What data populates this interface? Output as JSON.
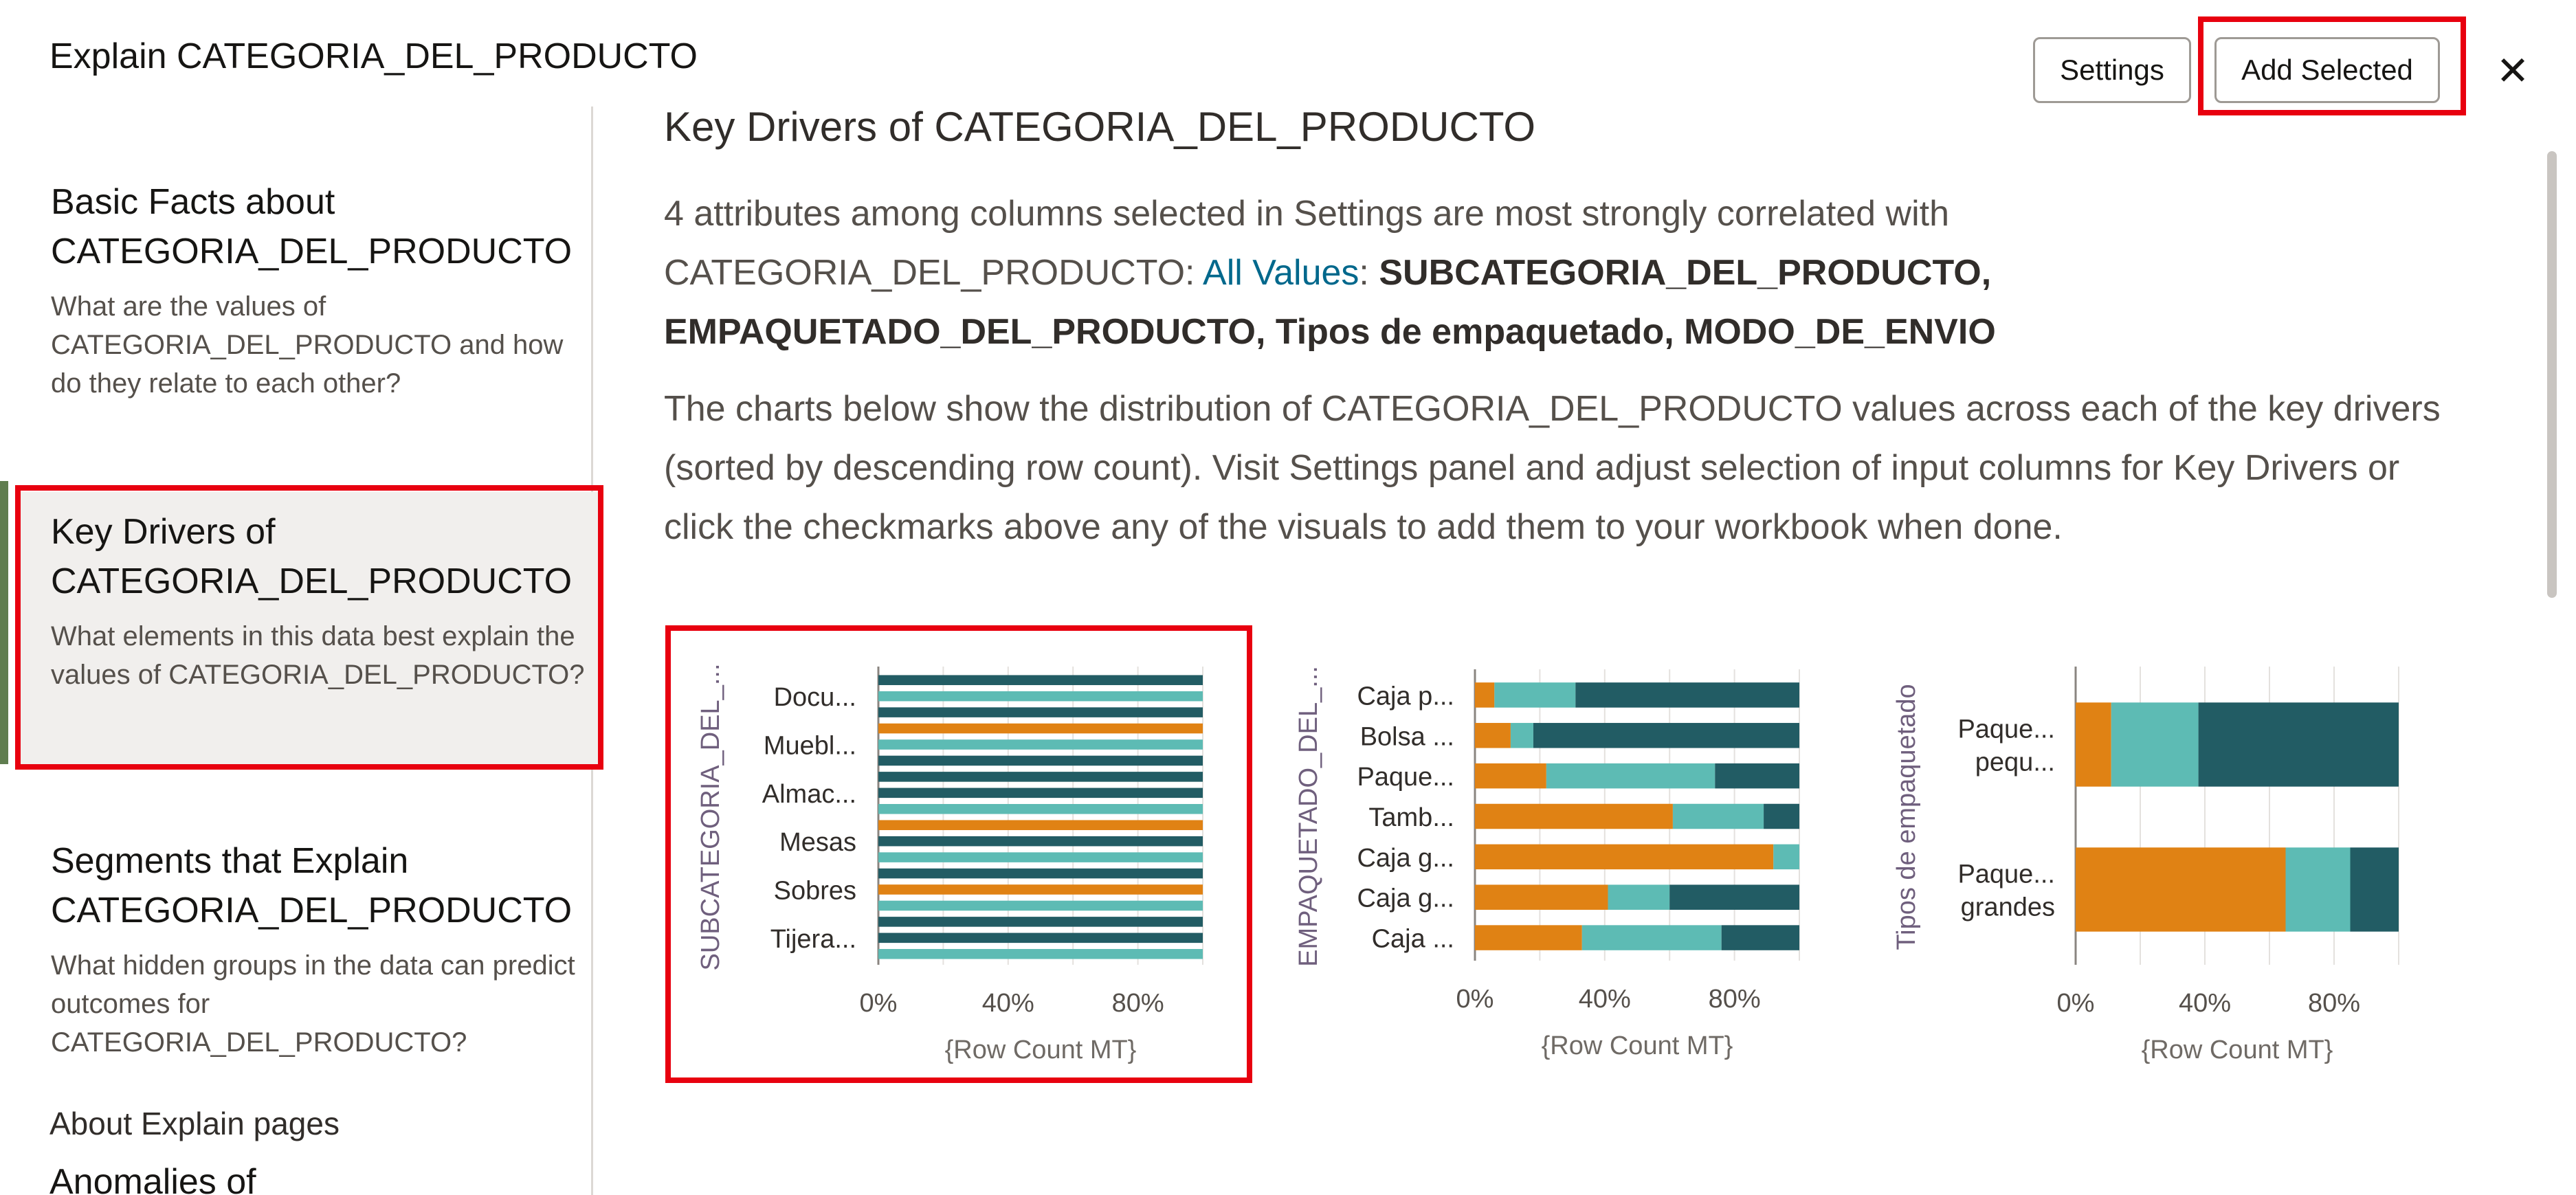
{
  "dialog": {
    "title": "Explain CATEGORIA_DEL_PRODUCTO",
    "settings_label": "Settings",
    "add_selected_label": "Add Selected",
    "close_icon": "close-icon"
  },
  "nav": {
    "items": [
      {
        "title": "Basic Facts about CATEGORIA_DEL_PRODUCTO",
        "description": "What are the values of CATEGORIA_DEL_PRODUCTO and how do they relate to each other?"
      },
      {
        "title": "Key Drivers of CATEGORIA_DEL_PRODUCTO",
        "description": "What elements in this data best explain the values of CATEGORIA_DEL_PRODUCTO?"
      },
      {
        "title": "Segments that Explain CATEGORIA_DEL_PRODUCTO",
        "description": "What hidden groups in the data can predict outcomes for CATEGORIA_DEL_PRODUCTO?"
      }
    ],
    "about_label": "About Explain pages",
    "anomalies_label": "Anomalies of"
  },
  "main": {
    "title": "Key Drivers of CATEGORIA_DEL_PRODUCTO",
    "summary_prefix": "4 attributes among columns selected in Settings are most strongly correlated with CATEGORIA_DEL_PRODUCTO: ",
    "summary_link": "All Values",
    "summary_colon": ": ",
    "summary_bold": "SUBCATEGORIA_DEL_PRODUCTO, EMPAQUETADO_DEL_PRODUCTO, Tipos de empaquetado, MODO_DE_ENVIO",
    "description": "The charts below show the distribution of CATEGORIA_DEL_PRODUCTO values across each of the key drivers (sorted by descending row count). Visit Settings panel and adjust selection of input columns for Key Drivers or click the checkmarks above any of the visuals to add them to your workbook when done."
  },
  "colors": {
    "orange": "#e08214",
    "teal": "#5dbbb4",
    "dark_teal": "#225c64"
  },
  "chart_data": [
    {
      "type": "bar",
      "orientation": "horizontal",
      "stacked": true,
      "ylabel": "SUBCATEGORIA_DEL_...",
      "xlabel": "{Row Count MT}",
      "xticks": [
        "0%",
        "40%",
        "80%"
      ],
      "xlim": [
        0,
        100
      ],
      "categories": [
        "Docu...",
        "",
        "",
        "Muebl...",
        "",
        "",
        "Almac...",
        "",
        "",
        "Mesas",
        "",
        "",
        "Sobres",
        "",
        "",
        "Tijera...",
        "",
        ""
      ],
      "tick_labels": [
        "Docu...",
        "Muebl...",
        "Almac...",
        "Mesas",
        "Sobres",
        "Tijera..."
      ],
      "bar_colors": [
        "dark_teal",
        "teal",
        "dark_teal",
        "orange",
        "teal",
        "dark_teal",
        "dark_teal",
        "dark_teal",
        "teal",
        "orange",
        "dark_teal",
        "teal",
        "dark_teal",
        "orange",
        "teal",
        "dark_teal",
        "dark_teal",
        "teal"
      ],
      "values": [
        100,
        100,
        100,
        100,
        100,
        100,
        100,
        100,
        100,
        100,
        100,
        100,
        100,
        100,
        100,
        100,
        100,
        100
      ]
    },
    {
      "type": "bar",
      "orientation": "horizontal",
      "stacked": true,
      "ylabel": "EMPAQUETADO_DEL_...",
      "xlabel": "{Row Count MT}",
      "xticks": [
        "0%",
        "40%",
        "80%"
      ],
      "xlim": [
        0,
        100
      ],
      "categories": [
        "Caja p...",
        "Bolsa ...",
        "Paque...",
        "Tamb...",
        "Caja g...",
        "Caja g...",
        "Caja ..."
      ],
      "series": [
        {
          "color": "orange",
          "values": [
            6,
            11,
            22,
            61,
            92,
            41,
            33
          ]
        },
        {
          "color": "teal",
          "values": [
            25,
            7,
            52,
            28,
            8,
            19,
            43
          ]
        },
        {
          "color": "dark_teal",
          "values": [
            69,
            82,
            26,
            11,
            0,
            40,
            24
          ]
        }
      ]
    },
    {
      "type": "bar",
      "orientation": "horizontal",
      "stacked": true,
      "ylabel": "Tipos de empaquetado",
      "xlabel": "{Row Count MT}",
      "xticks": [
        "0%",
        "40%",
        "80%"
      ],
      "xlim": [
        0,
        100
      ],
      "categories": [
        [
          "Paque...",
          "pequ..."
        ],
        [
          "Paque...",
          "grandes"
        ]
      ],
      "series": [
        {
          "color": "orange",
          "values": [
            11,
            65
          ]
        },
        {
          "color": "teal",
          "values": [
            27,
            20
          ]
        },
        {
          "color": "dark_teal",
          "values": [
            62,
            15
          ]
        }
      ]
    }
  ]
}
